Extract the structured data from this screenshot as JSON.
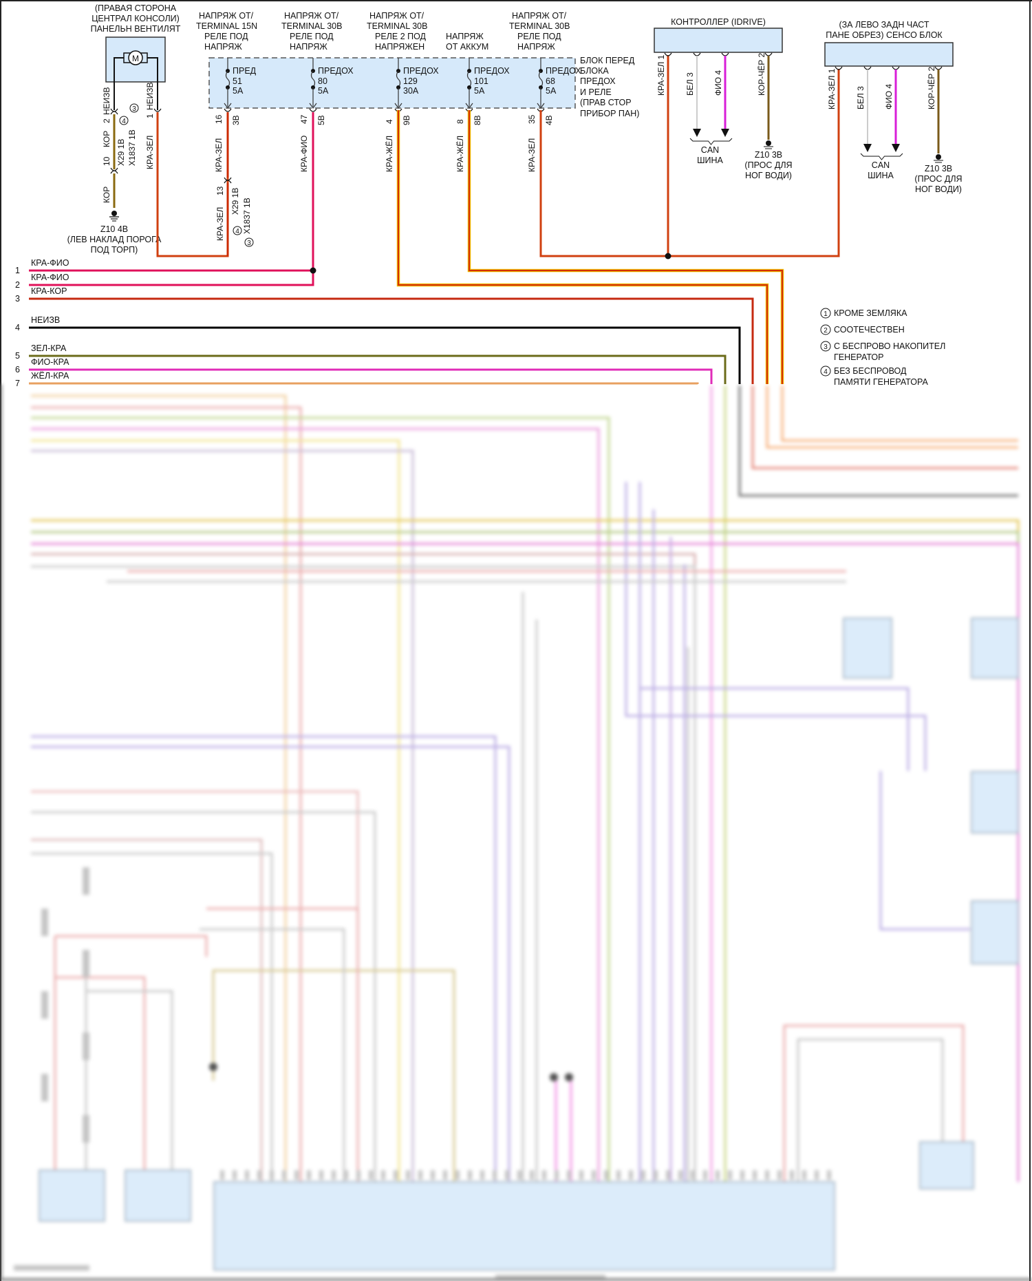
{
  "fan": {
    "title_lines": [
      "(ПРАВАЯ СТОРОНА",
      "ЦЕНТРАЛ КОНСОЛИ)",
      "ПАНЕЛЬН ВЕНТИЛЯТ"
    ],
    "motor": "M",
    "left": {
      "wire_top": "НЕИЗВ",
      "pin": "2",
      "wire": "КОР",
      "pin2": "10",
      "wire_bottom": "КОР",
      "conn1": "X29 1В",
      "conn2": "X1837 1В",
      "note_a": "4",
      "note_b": "3"
    },
    "right": {
      "pin": "1",
      "wire_top": "НЕИЗВ",
      "wire": "КРА-ЗЕЛ"
    },
    "ground": {
      "id": "Z10 4В",
      "lines": [
        "(ЛЕВ НАКЛАД ПОРОГА",
        "ПОД ТОРП)"
      ]
    }
  },
  "fuse_block": {
    "label_lines": [
      "БЛОК ПЕРЕД",
      "БЛОКА",
      "ПРЕДОХ",
      "И РЕЛЕ",
      "(ПРАВ СТОР",
      "ПРИБОР ПАН)"
    ],
    "fuses": [
      {
        "source": [
          "НАПРЯЖ ОТ/",
          "TERMINAL 15N",
          "РЕЛЕ ПОД",
          "НАПРЯЖ"
        ],
        "name": "ПРЕД",
        "number": "51",
        "rating": "5A",
        "pin": "16",
        "conn": "3В",
        "wire": "КРА-ЗЕЛ",
        "color": "#cc2a00"
      },
      {
        "source": [
          "НАПРЯЖ ОТ/",
          "TERMINAL 30В",
          "РЕЛЕ ПОД",
          "НАПРЯЖ"
        ],
        "name": "ПРЕДОХ",
        "number": "80",
        "rating": "5A",
        "pin": "47",
        "conn": "5В",
        "wire": "КРА-ФИО",
        "color": "#e0105a"
      },
      {
        "source": [
          "НАПРЯЖ ОТ/",
          "TERMINAL 30В",
          "РЕЛЕ 2 ПОД",
          "НАПРЯЖЕН"
        ],
        "name": "ПРЕДОХ",
        "number": "129",
        "rating": "30A",
        "pin": "4",
        "conn": "9В",
        "wire": "КРА-ЖЁЛ",
        "color": "#dd3300"
      },
      {
        "source": [
          "",
          "",
          "НАПРЯЖ",
          "ОТ АККУМ"
        ],
        "name": "ПРЕДОХ",
        "number": "101",
        "rating": "5A",
        "pin": "8",
        "conn": "8В",
        "wire": "КРА-ЖЁЛ",
        "color": "#dd3300"
      },
      {
        "source": [
          "НАПРЯЖ ОТ/",
          "TERMINAL 30В",
          "РЕЛЕ ПОД",
          "НАПРЯЖ"
        ],
        "name": "ПРЕДОХ",
        "number": "68",
        "rating": "5A",
        "pin": "35",
        "conn": "4В",
        "wire": "КРА-ЗЕЛ",
        "color": "#cc2a00"
      }
    ],
    "splice": {
      "pin": "13",
      "wire": "КРА-ЗЕЛ",
      "conn1": "X29 1В",
      "conn2": "X1837 1В",
      "note_a": "4",
      "note_b": "3"
    }
  },
  "idrive": {
    "title": "КОНТРОЛЛЕР (IDRIVE)",
    "pins": [
      "КРА-ЗЕЛ 1",
      "БЕЛ 3",
      "ФИО 4",
      "КОР-ЧЁР 2"
    ],
    "can": [
      "CAN",
      "ШИНА"
    ],
    "ground": [
      "Z10 3В",
      "(ПРОС ДЛЯ",
      "НОГ ВОДИ)"
    ]
  },
  "sensor": {
    "title_lines": [
      "(ЗА ЛЕВО ЗАДН ЧАСТ",
      "ПАНЕ ОБРЕЗ) СЕНСО БЛОК"
    ],
    "pins": [
      "КРА-ЗЕЛ 1",
      "БЕЛ 3",
      "ФИО 4",
      "КОР-ЧЁР 2"
    ],
    "can": [
      "CAN",
      "ШИНА"
    ],
    "ground": [
      "Z10 3В",
      "(ПРОС ДЛЯ",
      "НОГ ВОДИ)"
    ]
  },
  "harness": [
    {
      "num": "1",
      "label": "КРА-ФИО",
      "color": "#e0105a"
    },
    {
      "num": "2",
      "label": "КРА-ФИО",
      "color": "#e0105a"
    },
    {
      "num": "3",
      "label": "КРА-КОР",
      "color": "#c62a10"
    },
    {
      "num": "4",
      "label": "НЕИЗВ",
      "color": "#000000"
    },
    {
      "num": "5",
      "label": "ЗЕЛ-КРА",
      "color": "#6b6b1a"
    },
    {
      "num": "6",
      "label": "ФИО-КРА",
      "color": "#e02cb8"
    },
    {
      "num": "7",
      "label": "ЖЁЛ-КРА",
      "color": "#e8a060"
    }
  ],
  "legend": [
    {
      "num": "1",
      "lines": [
        "КРОМЕ ЗЕМЛЯКА"
      ]
    },
    {
      "num": "2",
      "lines": [
        "СООТЕЧЕСТВЕН"
      ]
    },
    {
      "num": "3",
      "lines": [
        "С БЕСПРОВО НАКОПИТЕЛ",
        "ГЕНЕРАТОР"
      ]
    },
    {
      "num": "4",
      "lines": [
        "БЕЗ БЕСПРОВОД",
        "ПАМЯТИ ГЕНЕРАТОРА"
      ]
    }
  ],
  "colors": {
    "component_fill": "#d6e9fa",
    "component_stroke": "#333333",
    "can_white": "#cccccc",
    "can_violet": "#d81ed8",
    "ground_brown": "#7a5a1a"
  }
}
